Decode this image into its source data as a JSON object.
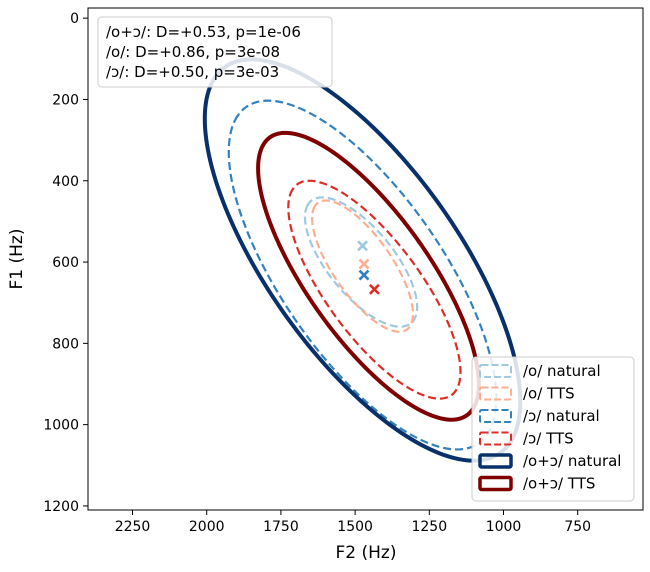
{
  "chart_data": {
    "type": "scatter",
    "xlabel": "F2 (Hz)",
    "ylabel": "F1 (Hz)",
    "x_ticks": [
      2250,
      2000,
      1750,
      1500,
      1250,
      1000,
      750
    ],
    "y_ticks": [
      0,
      200,
      400,
      600,
      800,
      1000,
      1200
    ],
    "x_axis_reversed": true,
    "y_axis_reversed": true,
    "stats_lines": [
      "/o+ɔ/: D=+0.53, p=1e-06",
      "/o/: D=+0.86, p=3e-08",
      "/ɔ/: D=+0.50, p=3e-03"
    ],
    "stats_placement": "top-left",
    "legend_placement": "bottom-right",
    "series": [
      {
        "name": "/o/ natural",
        "color": "#9ecae1",
        "style": "dashed",
        "mean": {
          "F2": 1475,
          "F1": 560
        },
        "ellipse": {
          "cx": 1480,
          "cy": 600,
          "rx": 228,
          "ry": 95,
          "angle_deg": -38
        }
      },
      {
        "name": "/o/ TTS",
        "color": "#fcae91",
        "style": "dashed",
        "mean": {
          "F2": 1470,
          "F1": 605
        },
        "ellipse": {
          "cx": 1475,
          "cy": 610,
          "rx": 218,
          "ry": 86,
          "angle_deg": -43
        }
      },
      {
        "name": "/ɔ/ natural",
        "color": "#3182bd",
        "style": "dashed",
        "mean": {
          "F2": 1470,
          "F1": 632
        },
        "ellipse": {
          "cx": 1475,
          "cy": 632,
          "rx": 575,
          "ry": 238,
          "angle_deg": -43
        }
      },
      {
        "name": "/ɔ/ TTS",
        "color": "#de2d26",
        "style": "dashed",
        "mean": {
          "F2": 1435,
          "F1": 667
        },
        "ellipse": {
          "cx": 1435,
          "cy": 668,
          "rx": 370,
          "ry": 138,
          "angle_deg": -42
        }
      },
      {
        "name": "/o+ɔ/ natural",
        "color": "#08306b",
        "style": "solid",
        "ellipse": {
          "cx": 1475,
          "cy": 595,
          "rx": 670,
          "ry": 278,
          "angle_deg": -42
        }
      },
      {
        "name": "/o+ɔ/ TTS",
        "color": "#7f0000",
        "style": "solid",
        "ellipse": {
          "cx": 1455,
          "cy": 635,
          "rx": 480,
          "ry": 180,
          "angle_deg": -43
        }
      }
    ]
  }
}
